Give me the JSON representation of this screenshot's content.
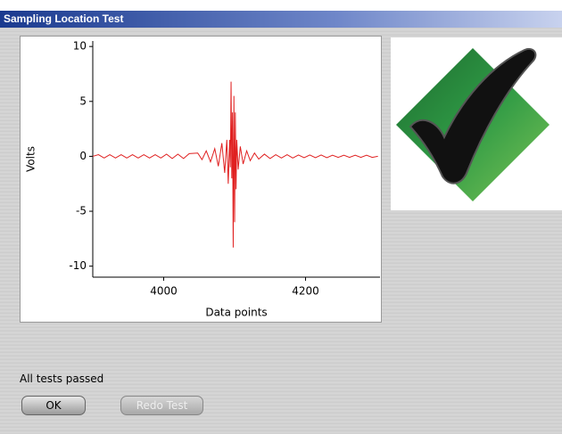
{
  "window": {
    "title": "Sampling Location Test"
  },
  "chart_data": {
    "type": "line",
    "xlabel": "Data points",
    "ylabel": "Volts",
    "xlim": [
      3900,
      4305
    ],
    "ylim": [
      -11,
      10.5
    ],
    "xticks": [
      4000,
      4200
    ],
    "yticks": [
      -10,
      -5,
      0,
      5,
      10
    ],
    "series": [
      {
        "color": "#e02020",
        "x": [
          3900,
          3908,
          3916,
          3924,
          3932,
          3940,
          3948,
          3956,
          3964,
          3972,
          3980,
          3988,
          3996,
          4004,
          4012,
          4020,
          4028,
          4036,
          4048,
          4054,
          4060,
          4066,
          4072,
          4077,
          4082,
          4086,
          4089,
          4091,
          4093,
          4094,
          4095,
          4096,
          4097,
          4098,
          4099,
          4100,
          4101,
          4102,
          4103,
          4105,
          4108,
          4112,
          4117,
          4122,
          4128,
          4134,
          4142,
          4150,
          4158,
          4166,
          4174,
          4182,
          4190,
          4198,
          4206,
          4214,
          4222,
          4230,
          4238,
          4246,
          4254,
          4262,
          4270,
          4278,
          4286,
          4294,
          4302
        ],
        "values": [
          0,
          0.15,
          -0.15,
          0.15,
          -0.15,
          0.15,
          -0.15,
          0.15,
          -0.15,
          0.15,
          -0.15,
          0.15,
          -0.15,
          0.2,
          -0.2,
          0.2,
          -0.2,
          0.25,
          0.3,
          -0.3,
          0.5,
          -0.5,
          0.7,
          -0.9,
          1.2,
          -1.5,
          1.5,
          -2.5,
          1.5,
          -1,
          6.8,
          -2,
          4,
          -8.3,
          5.5,
          -6,
          4,
          -3,
          1.5,
          -1.2,
          0.9,
          -0.7,
          0.5,
          -0.4,
          0.3,
          -0.25,
          0.2,
          -0.2,
          0.15,
          -0.15,
          0.15,
          -0.15,
          0.12,
          -0.12,
          0.12,
          -0.12,
          0.12,
          -0.12,
          0.1,
          -0.1,
          0.1,
          -0.1,
          0.1,
          -0.1,
          0.1,
          -0.1,
          0
        ]
      }
    ]
  },
  "status": "All tests passed",
  "buttons": {
    "ok": "OK",
    "redo": "Redo Test"
  }
}
